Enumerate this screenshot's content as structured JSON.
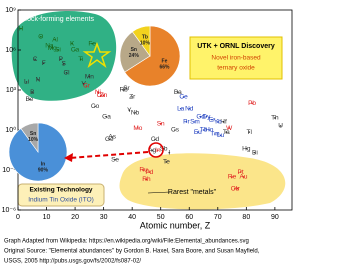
{
  "chart_data": {
    "type": "scatter",
    "xlabel": "Atomic number, Z",
    "xlim": [
      0,
      96
    ],
    "xticks": [
      0,
      10,
      20,
      30,
      40,
      50,
      60,
      70,
      80,
      90
    ],
    "ylim": [
      1e-06,
      1000000000
    ],
    "log_y": true,
    "yticks": [
      {
        "value": 1000000000,
        "label": "10⁹"
      },
      {
        "value": 1000000,
        "label": "10⁶"
      },
      {
        "value": 1000,
        "label": "10³"
      },
      {
        "value": 1,
        "label": "10⁰"
      },
      {
        "value": 0.001,
        "label": "10⁻³"
      },
      {
        "value": 1e-06,
        "label": "10⁻⁶"
      }
    ],
    "groups": [
      {
        "color": "#1b6b1b",
        "symbols": [
          "H",
          "O",
          "Na",
          "Mg",
          "Al",
          "Si",
          "K",
          "Ca",
          "Ti",
          "Fe"
        ],
        "x": [
          1,
          8,
          11,
          12,
          13,
          14,
          19,
          20,
          22,
          26
        ],
        "values": [
          40000000,
          10000000,
          2000000,
          1400000,
          6000000,
          1000000,
          3000000,
          1000000,
          200000,
          3000000
        ]
      },
      {
        "color": "#333333",
        "symbols": [
          "Li",
          "Be",
          "B",
          "C",
          "N",
          "F",
          "P",
          "S",
          "Cl",
          "V",
          "Mn",
          "Co",
          "Ga",
          "Ge",
          "As",
          "Se",
          "Rb",
          "Sr",
          "Y",
          "Zr",
          "Nb",
          "Ag",
          "Cd",
          "Sb",
          "Te",
          "I",
          "Cs",
          "Ba",
          "Hf",
          "Ta",
          "Hg",
          "Tl",
          "Bi",
          "Th",
          "U"
        ],
        "x": [
          3,
          4,
          5,
          6,
          7,
          9,
          15,
          16,
          17,
          23,
          25,
          27,
          31,
          32,
          33,
          34,
          37,
          38,
          39,
          40,
          41,
          47,
          48,
          51,
          52,
          53,
          55,
          56,
          72,
          73,
          80,
          81,
          83,
          90,
          92
        ],
        "values": [
          4000,
          200,
          700,
          200000,
          6000,
          100000,
          200000,
          90000,
          20000,
          3000,
          10000,
          60,
          10,
          0.2,
          0.3,
          0.006,
          1000,
          1400,
          30,
          300,
          20,
          0.03,
          0.2,
          0.04,
          0.004,
          0.02,
          1,
          700,
          4,
          0.7,
          0.04,
          0.7,
          0.02,
          8,
          2
        ]
      },
      {
        "color": "#2040c0",
        "symbols": [
          "La",
          "Ce",
          "Pr",
          "Nd",
          "Sm",
          "Eu",
          "Gd",
          "Tb",
          "Dy",
          "Ho",
          "Er",
          "Tm",
          "Yb",
          "Lu"
        ],
        "x": [
          57,
          58,
          59,
          60,
          62,
          63,
          64,
          65,
          66,
          67,
          68,
          69,
          70,
          71
        ],
        "values": [
          40,
          300,
          4,
          40,
          4,
          0.7,
          10,
          1,
          10,
          1,
          6,
          0.5,
          4,
          0.4
        ]
      },
      {
        "color": "#e02020",
        "symbols": [
          "Cr",
          "Ni",
          "Cu",
          "Zn",
          "Mo",
          "In",
          "Sn",
          "W",
          "Pb",
          "Ru",
          "Rh",
          "Pd",
          "Re",
          "Os",
          "Ir",
          "Pt",
          "Au"
        ],
        "x": [
          24,
          28,
          29,
          30,
          42,
          49,
          50,
          74,
          82,
          44,
          45,
          46,
          75,
          76,
          77,
          78,
          79
        ],
        "values": [
          2000,
          700,
          400,
          400,
          1.4,
          0.03,
          3,
          1.4,
          100,
          0.001,
          0.0002,
          0.0007,
          0.0003,
          4e-05,
          4e-05,
          0.0007,
          0.0003
        ]
      }
    ],
    "pies": [
      {
        "slices": [
          {
            "label": "Fe",
            "value": 66,
            "value_label": "66%",
            "color": "#e8822a"
          },
          {
            "label": "Sn",
            "value": 24,
            "value_label": "24%",
            "color": "#b8a888"
          },
          {
            "label": "Tb",
            "value": 10,
            "value_label": "10%",
            "color": "#f2d21e"
          }
        ]
      },
      {
        "slices": [
          {
            "label": "In",
            "value": 90,
            "value_label": "90%",
            "color": "#4a90d8"
          },
          {
            "label": "Sn",
            "value": 10,
            "value_label": "10%",
            "color": "#a8a8a8"
          }
        ]
      }
    ],
    "annotations": {
      "rock": "Rock-forming elements",
      "utk_title": "UTK + ORNL Discovery",
      "utk_text": [
        "Novel iron-based",
        "ternary oxide"
      ],
      "existing_title": "Existing Technology",
      "existing_text": "Indium Tin Oxide (ITO)",
      "rarest": "Rarest \"metals\""
    },
    "footer": [
      "Graph Adapted from Wikipedia: https://en.wikipedia.org/wiki/File:Elemental_abundances.svg",
      "Original Source: \"Elemental abundances\" by Gordon B. Haxel, Sara Boore, and Susan Mayfield,",
      "USGS, 2005 http://pubs.usgs.gov/fs/2002/fs087-02/"
    ]
  }
}
